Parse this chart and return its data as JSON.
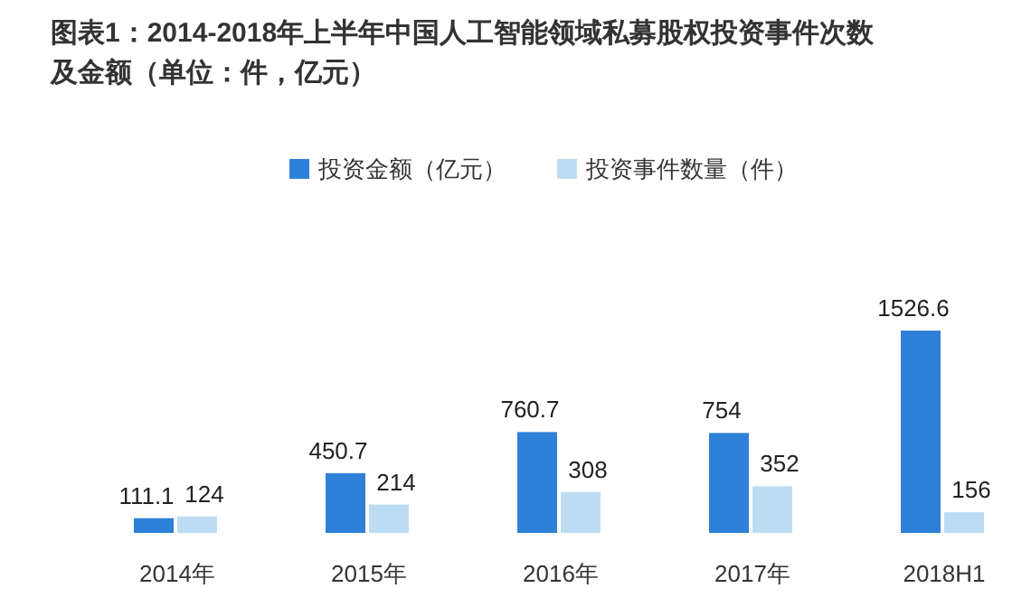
{
  "chart_data": {
    "type": "bar",
    "title": "图表1：2014-2018年上半年中国人工智能领域私募股权投资事件次数及金额（单位：件，亿元）",
    "categories": [
      "2014年",
      "2015年",
      "2016年",
      "2017年",
      "2018H1"
    ],
    "series": [
      {
        "name": "投资金额（亿元）",
        "color": "#2f80d8",
        "values": [
          111.1,
          450.7,
          760.7,
          754,
          1526.6
        ]
      },
      {
        "name": "投资事件数量（件）",
        "color": "#bddcf4",
        "values": [
          124,
          214,
          308,
          352,
          156
        ]
      }
    ],
    "data_labels": true,
    "legend": "top"
  }
}
